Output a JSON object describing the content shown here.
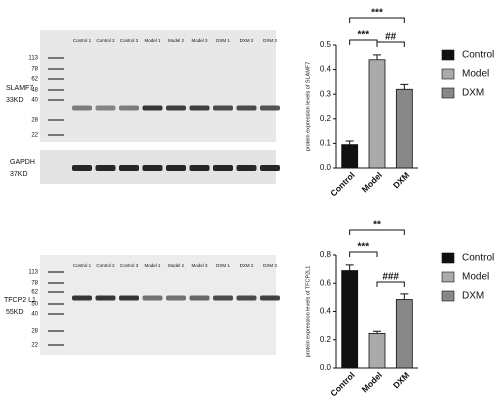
{
  "blots": [
    {
      "target": "SLAMF7",
      "size": "33KD",
      "lanes": [
        "Control 1",
        "Control 2",
        "Control 3",
        "Model 1",
        "Model 2",
        "Model 3",
        "DXM 1",
        "DXM 2",
        "DXM 3"
      ],
      "markers": [
        "113",
        "78",
        "62",
        "48",
        "40",
        "28",
        "22"
      ]
    },
    {
      "target": "GAPDH",
      "size": "37KD"
    },
    {
      "target": "TFCP2 L1",
      "size": "55KD",
      "lanes": [
        "Control 1",
        "Control 2",
        "Control 3",
        "Model 1",
        "Model 2",
        "Model 3",
        "DXM 1",
        "DXM 2",
        "DXM 3"
      ],
      "markers": [
        "113",
        "78",
        "62",
        "50",
        "40",
        "28",
        "22"
      ]
    }
  ],
  "chart_data": [
    {
      "type": "bar",
      "y_label": "protein expression levels of SLAMF7",
      "categories": [
        "Control",
        "Model",
        "DXM"
      ],
      "values": [
        0.095,
        0.44,
        0.32
      ],
      "errors": [
        0.015,
        0.02,
        0.02
      ],
      "colors": [
        "#111111",
        "#aaaaaa",
        "#888888"
      ],
      "ylim": [
        0,
        0.5
      ],
      "yticks": [
        {
          "value": 0,
          "label": "0.0"
        },
        0.1,
        0.2,
        0.3,
        0.4,
        0.5
      ],
      "annotations": [
        "***",
        "***",
        "##"
      ]
    },
    {
      "type": "bar",
      "y_label": "protein expression levels of TFCP2L1",
      "categories": [
        "Control",
        "Model",
        "DXM"
      ],
      "values": [
        0.69,
        0.245,
        0.485
      ],
      "errors": [
        0.04,
        0.015,
        0.04
      ],
      "colors": [
        "#111111",
        "#aaaaaa",
        "#888888"
      ],
      "ylim": [
        0,
        0.8
      ],
      "yticks": [
        {
          "value": 0,
          "label": "0.0"
        },
        0.2,
        0.4,
        0.6,
        0.8
      ],
      "annotations": [
        "**",
        "***",
        "###"
      ]
    }
  ]
}
